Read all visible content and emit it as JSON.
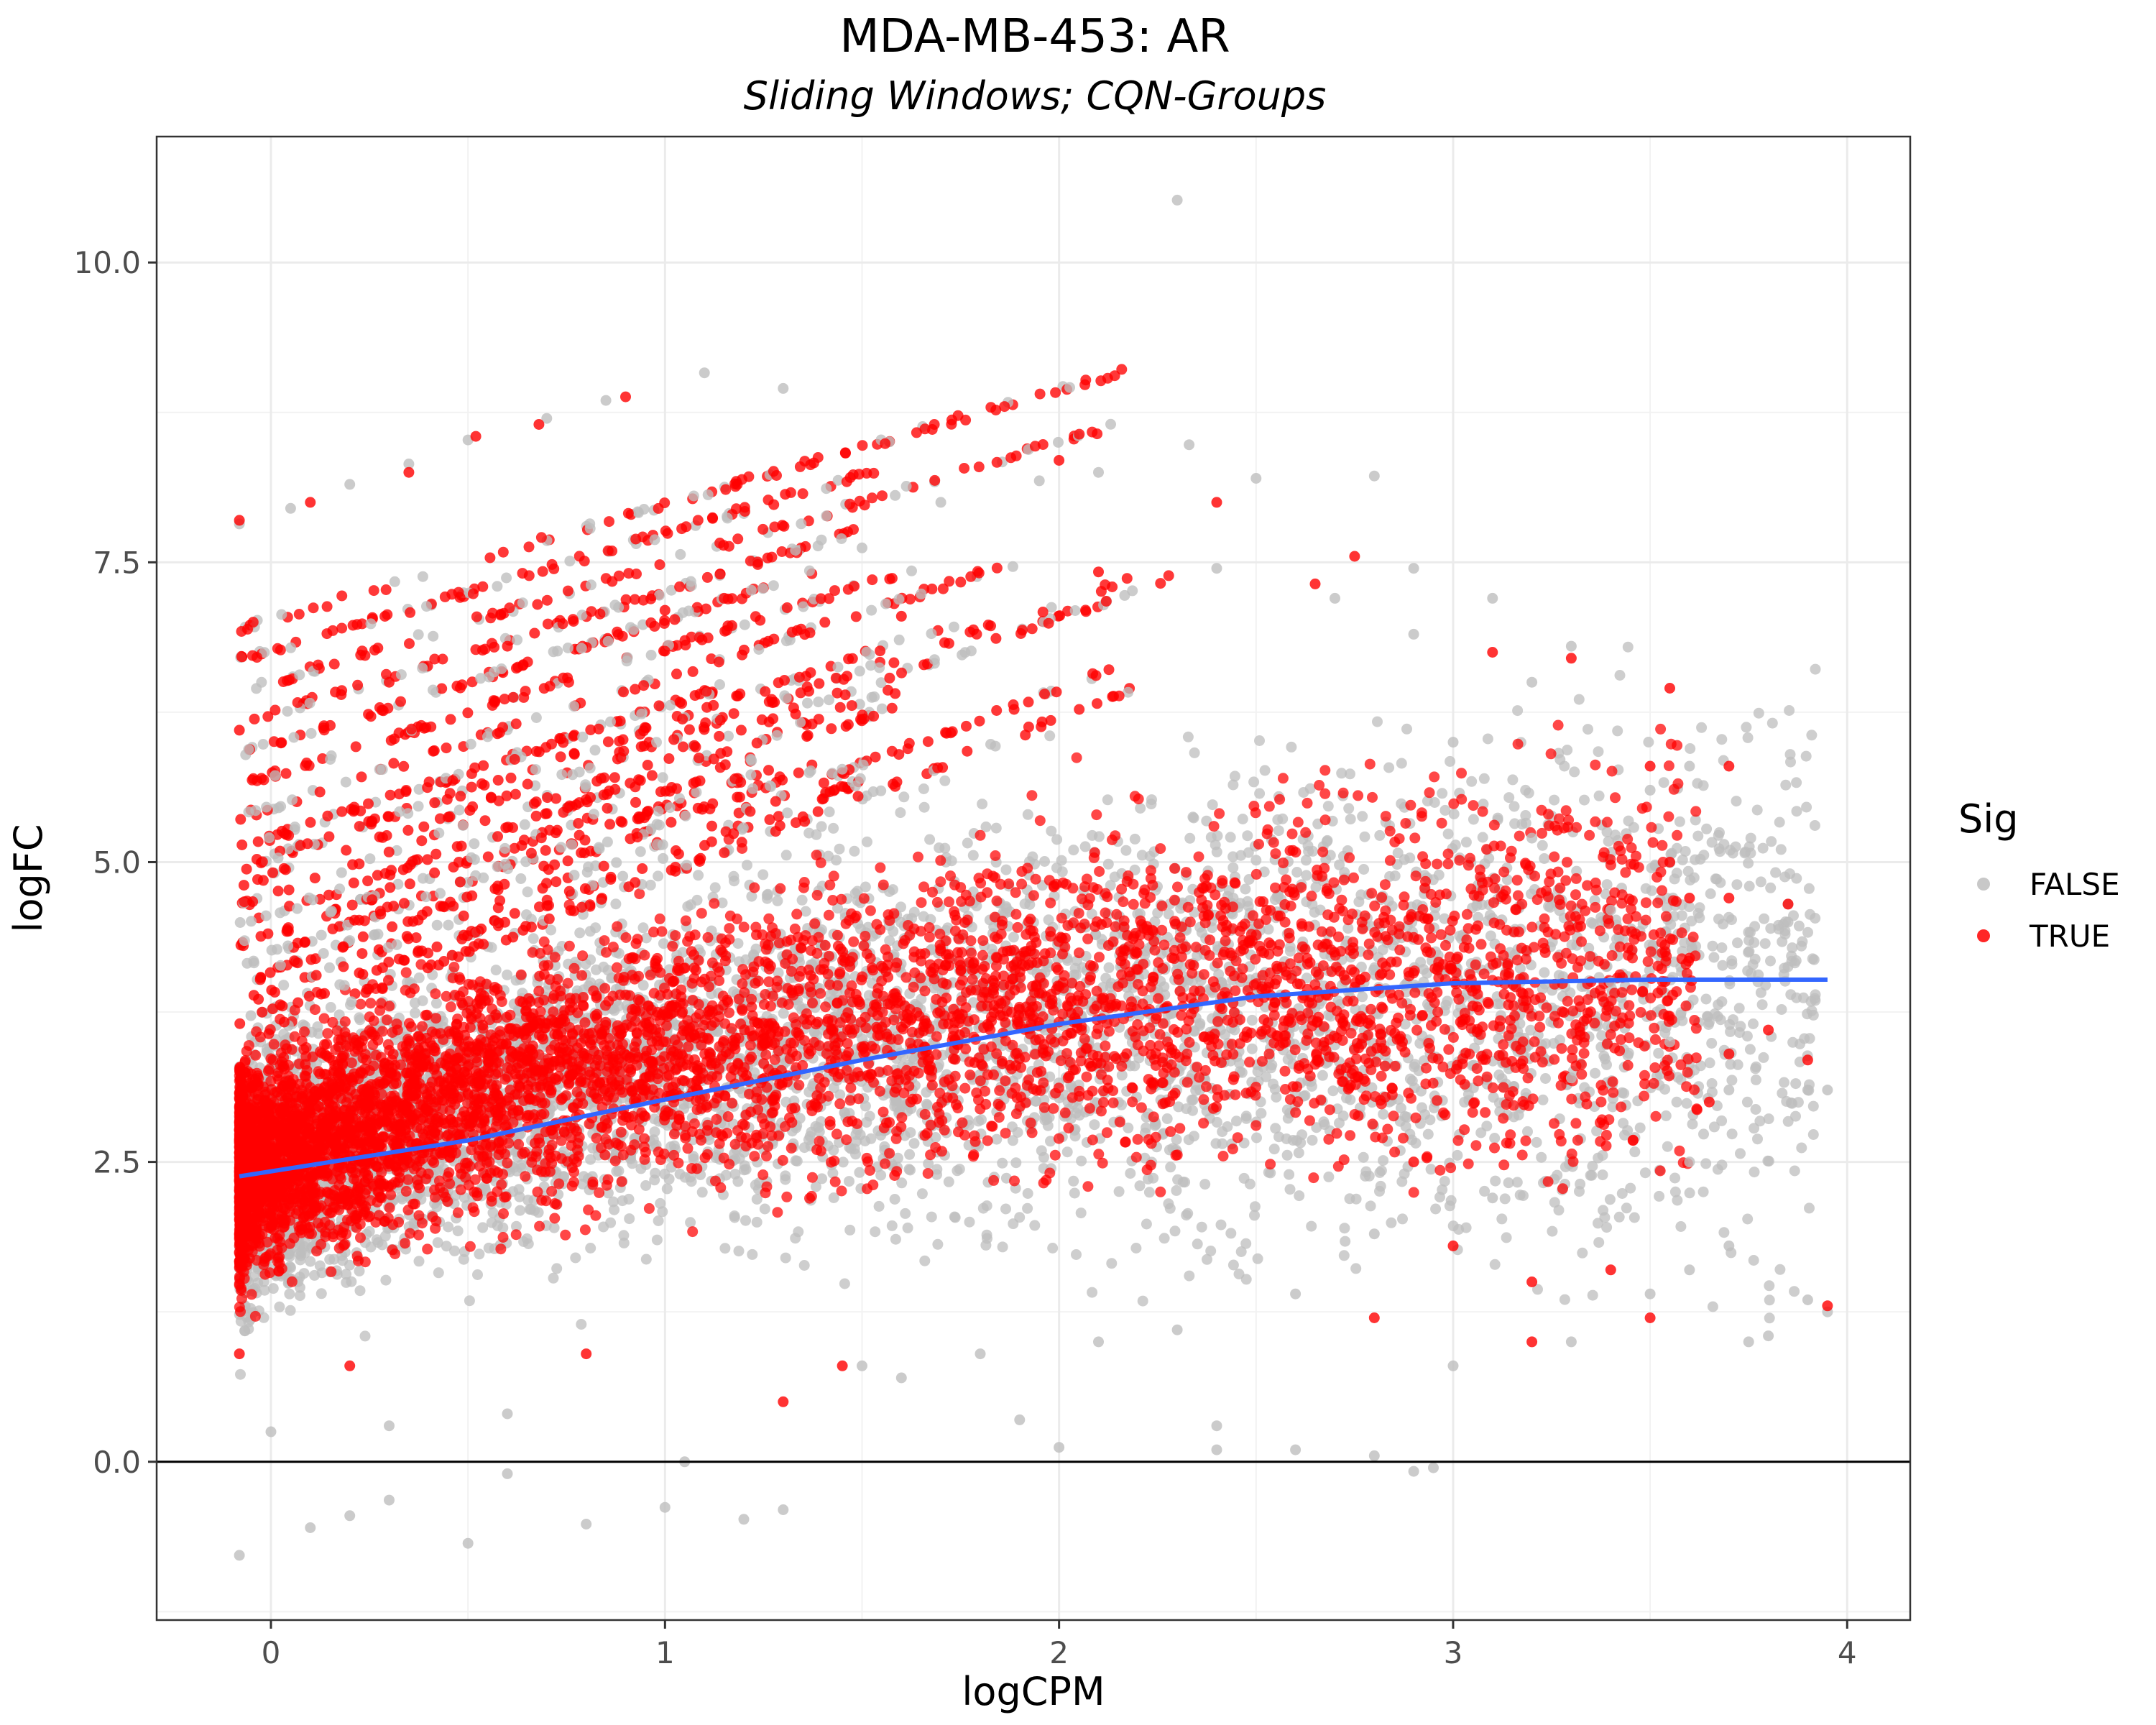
{
  "chart_data": {
    "type": "scatter",
    "title": "MDA-MB-453: AR",
    "subtitle": "Sliding Windows; CQN-Groups",
    "xlabel": "logCPM",
    "ylabel": "logFC",
    "xlim": [
      -0.29,
      4.16
    ],
    "ylim": [
      -1.32,
      11.05
    ],
    "x_ticks": [
      0,
      1,
      2,
      3,
      4
    ],
    "y_ticks": [
      0.0,
      2.5,
      5.0,
      7.5,
      10.0
    ],
    "x_tick_labels": [
      "0",
      "1",
      "2",
      "3",
      "4"
    ],
    "y_tick_labels": [
      "0.0",
      "2.5",
      "5.0",
      "7.5",
      "10.0"
    ],
    "grid": true,
    "hline": 0,
    "legend": {
      "title": "Sig",
      "position": "right",
      "entries": [
        {
          "label": "FALSE",
          "color": "#bebebe"
        },
        {
          "label": "TRUE",
          "color": "#ff0000"
        }
      ]
    },
    "series": [
      {
        "name": "FALSE",
        "color": "#bebebe",
        "points": [
          [
            -0.08,
            7.82
          ],
          [
            0.05,
            7.95
          ],
          [
            0.2,
            8.15
          ],
          [
            0.35,
            8.32
          ],
          [
            0.5,
            8.52
          ],
          [
            0.7,
            8.7
          ],
          [
            0.85,
            8.85
          ],
          [
            1.1,
            9.08
          ],
          [
            1.3,
            8.95
          ],
          [
            2.3,
            10.52
          ],
          [
            2.33,
            8.48
          ],
          [
            2.5,
            8.2
          ],
          [
            2.8,
            8.22
          ],
          [
            2.1,
            8.25
          ],
          [
            1.7,
            8.0
          ],
          [
            1.95,
            8.18
          ],
          [
            2.4,
            7.45
          ],
          [
            2.9,
            7.45
          ],
          [
            3.1,
            7.2
          ],
          [
            1.5,
            7.62
          ],
          [
            -0.08,
            -0.78
          ],
          [
            0.1,
            -0.55
          ],
          [
            0.3,
            -0.32
          ],
          [
            0.5,
            -0.68
          ],
          [
            0.8,
            -0.52
          ],
          [
            1.0,
            -0.38
          ],
          [
            1.3,
            -0.4
          ],
          [
            1.2,
            -0.48
          ],
          [
            0.2,
            -0.45
          ],
          [
            0.6,
            -0.1
          ],
          [
            1.05,
            0.0
          ],
          [
            1.6,
            0.7
          ],
          [
            1.9,
            0.35
          ],
          [
            2.0,
            0.12
          ],
          [
            2.4,
            0.3
          ],
          [
            2.4,
            0.1
          ],
          [
            2.6,
            0.1
          ],
          [
            2.8,
            0.05
          ],
          [
            2.9,
            -0.08
          ],
          [
            2.95,
            -0.05
          ],
          [
            3.0,
            0.8
          ],
          [
            3.3,
            1.0
          ],
          [
            3.5,
            1.4
          ],
          [
            3.6,
            1.6
          ],
          [
            3.7,
            1.8
          ],
          [
            3.75,
            1.0
          ],
          [
            3.8,
            1.05
          ],
          [
            3.9,
            1.35
          ],
          [
            3.95,
            1.25
          ],
          [
            3.85,
            4.5
          ],
          [
            3.85,
            4.65
          ],
          [
            3.6,
            5.8
          ],
          [
            3.5,
            5.6
          ],
          [
            3.4,
            4.6
          ],
          [
            3.3,
            3.2
          ],
          [
            3.6,
            2.5
          ],
          [
            3.7,
            3.1
          ],
          [
            3.9,
            3.1
          ],
          [
            3.95,
            3.1
          ],
          [
            3.2,
            6.5
          ],
          [
            3.3,
            6.8
          ],
          [
            2.9,
            6.9
          ],
          [
            2.7,
            7.2
          ],
          [
            3.0,
            6.0
          ],
          [
            3.2,
            5.2
          ],
          [
            3.4,
            4.0
          ],
          [
            3.55,
            3.5
          ],
          [
            3.1,
            2.2
          ],
          [
            2.8,
            1.9
          ],
          [
            2.6,
            1.4
          ],
          [
            2.3,
            1.1
          ],
          [
            2.1,
            1.0
          ],
          [
            1.8,
            0.9
          ],
          [
            1.5,
            0.8
          ],
          [
            0.6,
            0.4
          ],
          [
            0.3,
            0.3
          ],
          [
            0.0,
            0.25
          ]
        ]
      },
      {
        "name": "TRUE",
        "color": "#ff0000",
        "points": [
          [
            -0.08,
            7.85
          ],
          [
            0.1,
            8.0
          ],
          [
            0.35,
            8.25
          ],
          [
            0.52,
            8.55
          ],
          [
            0.68,
            8.65
          ],
          [
            0.9,
            8.88
          ],
          [
            -0.08,
            6.1
          ],
          [
            0.3,
            6.5
          ],
          [
            0.6,
            6.8
          ],
          [
            1.0,
            7.1
          ],
          [
            1.15,
            7.2
          ],
          [
            1.6,
            7.05
          ],
          [
            2.0,
            8.35
          ],
          [
            2.4,
            8.0
          ],
          [
            2.75,
            7.55
          ],
          [
            2.65,
            7.32
          ],
          [
            2.1,
            7.42
          ],
          [
            3.1,
            6.75
          ],
          [
            3.3,
            6.7
          ],
          [
            3.55,
            6.45
          ],
          [
            3.7,
            5.8
          ],
          [
            3.5,
            5.8
          ],
          [
            3.55,
            5.0
          ],
          [
            3.6,
            4.7
          ],
          [
            3.7,
            4.7
          ],
          [
            3.85,
            4.65
          ],
          [
            3.6,
            4.2
          ],
          [
            3.8,
            3.6
          ],
          [
            3.9,
            3.35
          ],
          [
            3.95,
            1.3
          ],
          [
            3.5,
            1.2
          ],
          [
            3.4,
            1.6
          ],
          [
            3.2,
            1.5
          ],
          [
            3.2,
            1.0
          ],
          [
            2.8,
            1.2
          ],
          [
            1.3,
            0.5
          ],
          [
            1.45,
            0.8
          ],
          [
            -0.08,
            0.9
          ],
          [
            0.2,
            0.8
          ],
          [
            0.8,
            0.9
          ],
          [
            3.65,
            3.0
          ],
          [
            3.7,
            3.4
          ],
          [
            3.05,
            3.8
          ],
          [
            2.9,
            2.5
          ],
          [
            3.0,
            1.8
          ]
        ]
      }
    ],
    "trend_line": {
      "color": "#3366ff",
      "points": [
        [
          -0.08,
          2.38
        ],
        [
          0.5,
          2.68
        ],
        [
          1.0,
          3.02
        ],
        [
          1.5,
          3.35
        ],
        [
          2.0,
          3.65
        ],
        [
          2.5,
          3.88
        ],
        [
          3.0,
          3.99
        ],
        [
          3.5,
          4.02
        ],
        [
          3.95,
          4.02
        ]
      ]
    }
  }
}
